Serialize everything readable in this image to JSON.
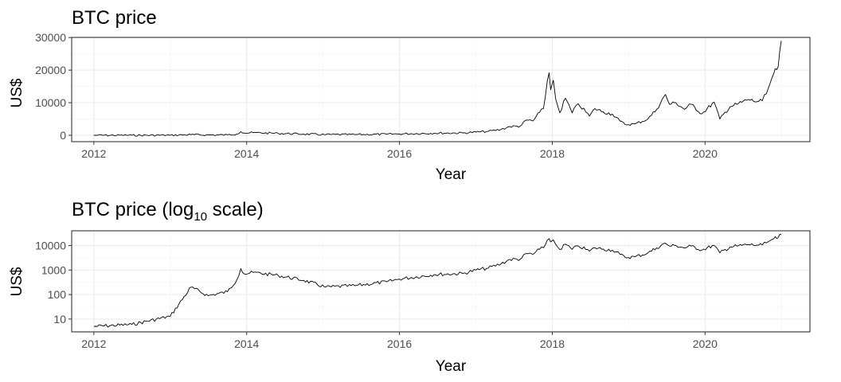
{
  "chart_data": [
    {
      "type": "line",
      "title": "BTC price",
      "xlabel": "Year",
      "ylabel": "US$",
      "x_ticks": [
        "2012",
        "2014",
        "2016",
        "2018",
        "2020"
      ],
      "y_ticks": [
        "0",
        "10000",
        "20000",
        "30000"
      ],
      "y_scale": "linear",
      "ylim": [
        0,
        30000
      ],
      "xlim": [
        "2011-09-17",
        "2021-05-17"
      ],
      "grid": true,
      "series": [
        {
          "x": [
            "2012-01-01",
            "2012-07-01",
            "2013-01-01",
            "2013-04-10",
            "2013-07-01",
            "2013-10-01",
            "2013-11-15",
            "2013-12-04",
            "2013-12-20",
            "2014-02-01",
            "2014-06-01",
            "2014-10-01",
            "2015-01-14",
            "2015-06-01",
            "2015-11-01",
            "2016-01-01",
            "2016-06-15",
            "2016-11-01",
            "2017-01-01",
            "2017-03-01",
            "2017-05-01",
            "2017-06-12",
            "2017-08-01",
            "2017-09-01",
            "2017-10-01",
            "2017-11-01",
            "2017-11-20",
            "2017-12-08",
            "2017-12-17",
            "2017-12-24",
            "2018-01-06",
            "2018-01-17",
            "2018-02-06",
            "2018-03-05",
            "2018-04-06",
            "2018-05-05",
            "2018-06-28",
            "2018-07-24",
            "2018-09-01",
            "2018-10-15",
            "2018-11-20",
            "2018-12-15",
            "2019-02-01",
            "2019-04-03",
            "2019-05-15",
            "2019-06-26",
            "2019-07-15",
            "2019-08-15",
            "2019-09-24",
            "2019-10-26",
            "2019-12-17",
            "2020-02-13",
            "2020-03-12",
            "2020-04-30",
            "2020-06-01",
            "2020-07-27",
            "2020-09-05",
            "2020-10-01",
            "2020-10-21",
            "2020-11-05",
            "2020-11-25",
            "2020-12-16",
            "2020-12-31"
          ],
          "values": [
            5,
            6,
            13,
            200,
            90,
            130,
            400,
            1150,
            700,
            800,
            600,
            380,
            200,
            230,
            330,
            430,
            650,
            730,
            1000,
            1200,
            1800,
            2700,
            2800,
            4700,
            4400,
            7000,
            8200,
            16500,
            19200,
            14000,
            16900,
            11200,
            6900,
            11400,
            6900,
            9700,
            5900,
            8200,
            7200,
            6500,
            4400,
            3300,
            3500,
            5000,
            8000,
            12500,
            9500,
            10000,
            8000,
            9500,
            6600,
            10200,
            5000,
            8800,
            9500,
            11000,
            10300,
            10600,
            12800,
            15500,
            19000,
            21000,
            29000
          ]
        }
      ]
    },
    {
      "type": "line",
      "title_main": "BTC price (log",
      "title_sub": "10",
      "title_end": " scale)",
      "xlabel": "Year",
      "ylabel": "US$",
      "x_ticks": [
        "2012",
        "2014",
        "2016",
        "2018",
        "2020"
      ],
      "y_ticks": [
        "10",
        "100",
        "1000",
        "10000"
      ],
      "y_scale": "log10",
      "ylim": [
        3,
        40000
      ],
      "xlim": [
        "2011-09-17",
        "2021-05-17"
      ],
      "grid": true,
      "series": [
        {
          "x": [
            "2012-01-01",
            "2012-07-01",
            "2013-01-01",
            "2013-04-10",
            "2013-07-01",
            "2013-10-01",
            "2013-11-15",
            "2013-12-04",
            "2013-12-20",
            "2014-02-01",
            "2014-06-01",
            "2014-10-01",
            "2015-01-14",
            "2015-06-01",
            "2015-11-01",
            "2016-01-01",
            "2016-06-15",
            "2016-11-01",
            "2017-01-01",
            "2017-03-01",
            "2017-05-01",
            "2017-06-12",
            "2017-08-01",
            "2017-09-01",
            "2017-10-01",
            "2017-11-01",
            "2017-11-20",
            "2017-12-08",
            "2017-12-17",
            "2017-12-24",
            "2018-01-06",
            "2018-01-17",
            "2018-02-06",
            "2018-03-05",
            "2018-04-06",
            "2018-05-05",
            "2018-06-28",
            "2018-07-24",
            "2018-09-01",
            "2018-10-15",
            "2018-11-20",
            "2018-12-15",
            "2019-02-01",
            "2019-04-03",
            "2019-05-15",
            "2019-06-26",
            "2019-07-15",
            "2019-08-15",
            "2019-09-24",
            "2019-10-26",
            "2019-12-17",
            "2020-02-13",
            "2020-03-12",
            "2020-04-30",
            "2020-06-01",
            "2020-07-27",
            "2020-09-05",
            "2020-10-01",
            "2020-10-21",
            "2020-11-05",
            "2020-11-25",
            "2020-12-16",
            "2020-12-31"
          ],
          "values": [
            5,
            6,
            13,
            200,
            90,
            130,
            400,
            1150,
            700,
            800,
            600,
            380,
            200,
            230,
            330,
            430,
            650,
            730,
            1000,
            1200,
            1800,
            2700,
            2800,
            4700,
            4400,
            7000,
            8200,
            16500,
            19200,
            14000,
            16900,
            11200,
            6900,
            11400,
            6900,
            9700,
            5900,
            8200,
            7200,
            6500,
            4400,
            3300,
            3500,
            5000,
            8000,
            12500,
            9500,
            10000,
            8000,
            9500,
            6600,
            10200,
            5000,
            8800,
            9500,
            11000,
            10300,
            10600,
            12800,
            15500,
            19000,
            21000,
            29000
          ]
        }
      ]
    }
  ]
}
